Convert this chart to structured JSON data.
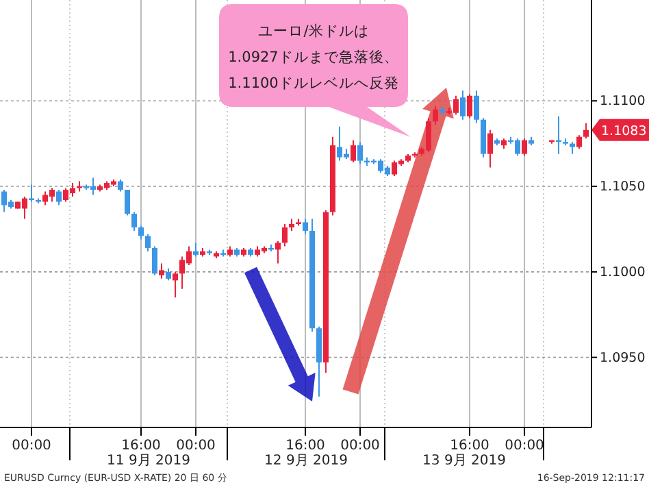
{
  "chart_data": {
    "type": "candlestick",
    "x": [
      "2019-09-10T20:00",
      "2019-09-10T21:00",
      "2019-09-10T22:00",
      "2019-09-10T23:00",
      "2019-09-11T00:00",
      "2019-09-11T01:00",
      "2019-09-11T02:00",
      "2019-09-11T03:00",
      "2019-09-11T04:00",
      "2019-09-11T05:00",
      "2019-09-11T06:00",
      "2019-09-11T07:00",
      "2019-09-11T08:00",
      "2019-09-11T09:00",
      "2019-09-11T10:00",
      "2019-09-11T11:00",
      "2019-09-11T12:00",
      "2019-09-11T13:00",
      "2019-09-11T14:00",
      "2019-09-11T15:00",
      "2019-09-11T16:00",
      "2019-09-11T17:00",
      "2019-09-11T18:00",
      "2019-09-11T19:00",
      "2019-09-11T20:00",
      "2019-09-11T21:00",
      "2019-09-11T22:00",
      "2019-09-11T23:00",
      "2019-09-12T00:00",
      "2019-09-12T01:00",
      "2019-09-12T02:00",
      "2019-09-12T03:00",
      "2019-09-12T04:00",
      "2019-09-12T05:00",
      "2019-09-12T06:00",
      "2019-09-12T07:00",
      "2019-09-12T08:00",
      "2019-09-12T09:00",
      "2019-09-12T10:00",
      "2019-09-12T11:00",
      "2019-09-12T12:00",
      "2019-09-12T13:00",
      "2019-09-12T14:00",
      "2019-09-12T15:00",
      "2019-09-12T16:00",
      "2019-09-12T17:00",
      "2019-09-12T18:00",
      "2019-09-12T19:00",
      "2019-09-12T20:00",
      "2019-09-12T21:00",
      "2019-09-12T22:00",
      "2019-09-12T23:00",
      "2019-09-13T00:00",
      "2019-09-13T01:00",
      "2019-09-13T02:00",
      "2019-09-13T03:00",
      "2019-09-13T04:00",
      "2019-09-13T05:00",
      "2019-09-13T06:00",
      "2019-09-13T07:00",
      "2019-09-13T08:00",
      "2019-09-13T09:00",
      "2019-09-13T10:00",
      "2019-09-13T11:00",
      "2019-09-13T12:00",
      "2019-09-13T13:00",
      "2019-09-13T14:00",
      "2019-09-13T15:00",
      "2019-09-13T16:00",
      "2019-09-13T17:00",
      "2019-09-13T18:00",
      "2019-09-13T19:00",
      "2019-09-13T20:00",
      "2019-09-13T21:00",
      "2019-09-13T22:00",
      "2019-09-13T23:00",
      "2019-09-14T00:00",
      "2019-09-14T01:00",
      "2019-09-14T04:00",
      "2019-09-14T05:00",
      "2019-09-14T06:00",
      "2019-09-14T07:00",
      "2019-09-14T08:00",
      "2019-09-14T09:00"
    ],
    "ohlc": [
      [
        1.1047,
        1.1048,
        1.1035,
        1.1039
      ],
      [
        1.1041,
        1.1042,
        1.1037,
        1.1038
      ],
      [
        1.1037,
        1.1041,
        1.1037,
        1.1041
      ],
      [
        1.1037,
        1.1044,
        1.1031,
        1.1043
      ],
      [
        1.1043,
        1.1051,
        1.1041,
        1.1042
      ],
      [
        1.1042,
        1.1043,
        1.104,
        1.1041
      ],
      [
        1.1041,
        1.1047,
        1.1039,
        1.1045
      ],
      [
        1.1044,
        1.1049,
        1.1041,
        1.1048
      ],
      [
        1.1047,
        1.1048,
        1.1039,
        1.1041
      ],
      [
        1.1042,
        1.1049,
        1.1041,
        1.1048
      ],
      [
        1.1046,
        1.1052,
        1.1044,
        1.1049
      ],
      [
        1.1049,
        1.1053,
        1.1047,
        1.105
      ],
      [
        1.105,
        1.1051,
        1.1048,
        1.1049
      ],
      [
        1.105,
        1.1055,
        1.1045,
        1.1048
      ],
      [
        1.1048,
        1.1051,
        1.1047,
        1.105
      ],
      [
        1.1049,
        1.1053,
        1.1048,
        1.1052
      ],
      [
        1.1051,
        1.1054,
        1.105,
        1.1053
      ],
      [
        1.1053,
        1.1054,
        1.1047,
        1.1048
      ],
      [
        1.1048,
        1.1048,
        1.1033,
        1.1034
      ],
      [
        1.1034,
        1.1035,
        1.1024,
        1.1026
      ],
      [
        1.1026,
        1.1027,
        1.1019,
        1.1021
      ],
      [
        1.1021,
        1.1022,
        1.1012,
        1.1014
      ],
      [
        1.1014,
        1.1015,
        1.0998,
        1.0999
      ],
      [
        1.0998,
        1.1005,
        1.0996,
        1.1001
      ],
      [
        1.1,
        1.1002,
        1.0995,
        1.0996
      ],
      [
        1.0995,
        1.1,
        1.0985,
        1.0999
      ],
      [
        1.0999,
        1.1009,
        1.099,
        1.1007
      ],
      [
        1.1005,
        1.1015,
        1.1004,
        1.1012
      ],
      [
        1.1012,
        1.1017,
        1.1009,
        1.101
      ],
      [
        1.101,
        1.1014,
        1.1009,
        1.1012
      ],
      [
        1.1012,
        1.1013,
        1.101,
        1.1011
      ],
      [
        1.1009,
        1.1012,
        1.1008,
        1.1011
      ],
      [
        1.1011,
        1.1013,
        1.1009,
        1.101
      ],
      [
        1.101,
        1.1015,
        1.1009,
        1.1013
      ],
      [
        1.1013,
        1.1014,
        1.1009,
        1.101
      ],
      [
        1.101,
        1.1014,
        1.1009,
        1.1013
      ],
      [
        1.1013,
        1.1014,
        1.1009,
        1.101
      ],
      [
        1.101,
        1.1015,
        1.1009,
        1.1013
      ],
      [
        1.1012,
        1.1015,
        1.1011,
        1.1014
      ],
      [
        1.1014,
        1.1016,
        1.1012,
        1.1013
      ],
      [
        1.1013,
        1.1018,
        1.1005,
        1.1017
      ],
      [
        1.1017,
        1.1028,
        1.1015,
        1.1026
      ],
      [
        1.1026,
        1.1031,
        1.1024,
        1.1028
      ],
      [
        1.1028,
        1.1031,
        1.1027,
        1.1029
      ],
      [
        1.1029,
        1.1031,
        1.1022,
        1.1024
      ],
      [
        1.1024,
        1.1031,
        1.0965,
        1.0967
      ],
      [
        1.0967,
        1.0968,
        1.0927,
        1.0947
      ],
      [
        1.0947,
        1.1036,
        1.0941,
        1.1035
      ],
      [
        1.1035,
        1.1079,
        1.1033,
        1.1074
      ],
      [
        1.1073,
        1.1085,
        1.1065,
        1.1067
      ],
      [
        1.1069,
        1.1072,
        1.1066,
        1.1067
      ],
      [
        1.1065,
        1.1077,
        1.1064,
        1.1074
      ],
      [
        1.1074,
        1.1076,
        1.1063,
        1.1065
      ],
      [
        1.1065,
        1.1067,
        1.1062,
        1.1064
      ],
      [
        1.1065,
        1.1066,
        1.1063,
        1.1064
      ],
      [
        1.1065,
        1.1066,
        1.1058,
        1.1059
      ],
      [
        1.1061,
        1.1062,
        1.1056,
        1.1057
      ],
      [
        1.1057,
        1.1065,
        1.1056,
        1.1064
      ],
      [
        1.1063,
        1.1066,
        1.1062,
        1.1065
      ],
      [
        1.1065,
        1.1069,
        1.1064,
        1.1068
      ],
      [
        1.1068,
        1.107,
        1.1067,
        1.1069
      ],
      [
        1.1069,
        1.1073,
        1.1068,
        1.1072
      ],
      [
        1.1071,
        1.109,
        1.107,
        1.1088
      ],
      [
        1.1088,
        1.1097,
        1.1086,
        1.1095
      ],
      [
        1.1095,
        1.1097,
        1.1092,
        1.1093
      ],
      [
        1.1093,
        1.1096,
        1.1092,
        1.1094
      ],
      [
        1.1093,
        1.1103,
        1.1092,
        1.1101
      ],
      [
        1.1102,
        1.1106,
        1.1089,
        1.1091
      ],
      [
        1.1091,
        1.1104,
        1.109,
        1.1103
      ],
      [
        1.1103,
        1.1106,
        1.1087,
        1.1089
      ],
      [
        1.1089,
        1.109,
        1.1067,
        1.1069
      ],
      [
        1.1069,
        1.1083,
        1.1061,
        1.1081
      ],
      [
        1.1077,
        1.1078,
        1.1074,
        1.1075
      ],
      [
        1.1074,
        1.1078,
        1.1072,
        1.1077
      ],
      [
        1.1077,
        1.1079,
        1.1075,
        1.1076
      ],
      [
        1.1077,
        1.1078,
        1.1068,
        1.1069
      ],
      [
        1.1069,
        1.1078,
        1.1068,
        1.1077
      ],
      [
        1.1077,
        1.1079,
        1.1074,
        1.1075
      ],
      [
        1.1076,
        1.1077,
        1.1075,
        1.1077
      ],
      [
        1.1077,
        1.1091,
        1.1069,
        1.1076
      ],
      [
        1.1076,
        1.1078,
        1.1074,
        1.1075
      ],
      [
        1.1075,
        1.1076,
        1.1069,
        1.1073
      ],
      [
        1.1073,
        1.108,
        1.1072,
        1.1079
      ],
      [
        1.1079,
        1.1087,
        1.1078,
        1.1083
      ]
    ],
    "xlim": [
      "2019-09-10T19:24",
      "2019-09-14T09:48"
    ],
    "xticks": [
      {
        "value": "2019-09-11T00:00",
        "label": "00:00"
      },
      {
        "value": "2019-09-11T05:36",
        "label": null
      },
      {
        "value": "2019-09-11T16:00",
        "label": "16:00"
      },
      {
        "value": "2019-09-12T00:00",
        "label": "00:00"
      },
      {
        "value": "2019-09-12T04:36",
        "label": null
      },
      {
        "value": "2019-09-12T16:00",
        "label": "16:00"
      },
      {
        "value": "2019-09-13T00:00",
        "label": "00:00"
      },
      {
        "value": "2019-09-13T03:36",
        "label": null
      },
      {
        "value": "2019-09-13T16:00",
        "label": "16:00"
      },
      {
        "value": "2019-09-14T00:00",
        "label": "00:00"
      },
      {
        "value": "2019-09-14T02:48",
        "label": null
      }
    ],
    "ylim": [
      1.0909,
      1.1159
    ],
    "yticks": [
      {
        "value": 1.095,
        "label": "1.0950"
      },
      {
        "value": 1.1,
        "label": "1.1000"
      },
      {
        "value": 1.105,
        "label": "1.1050"
      },
      {
        "value": 1.11,
        "label": "1.1100"
      }
    ],
    "grid": true,
    "annotations": [
      "11 9月 2019",
      "12 9月 2019",
      "13 9月 2019",
      "ユーロ/米ドルは\n1.0927ドルまで急落後、\n1.1100ドルレベルへ反発",
      {
        "text": "1.1083",
        "x": "2019-09-14T09:00",
        "y": 1.1083
      },
      "EURUSD Curncy (EUR-USD X-RATE) 20 日 60 分",
      "16-Sep-2019 12:11:17"
    ]
  }
}
